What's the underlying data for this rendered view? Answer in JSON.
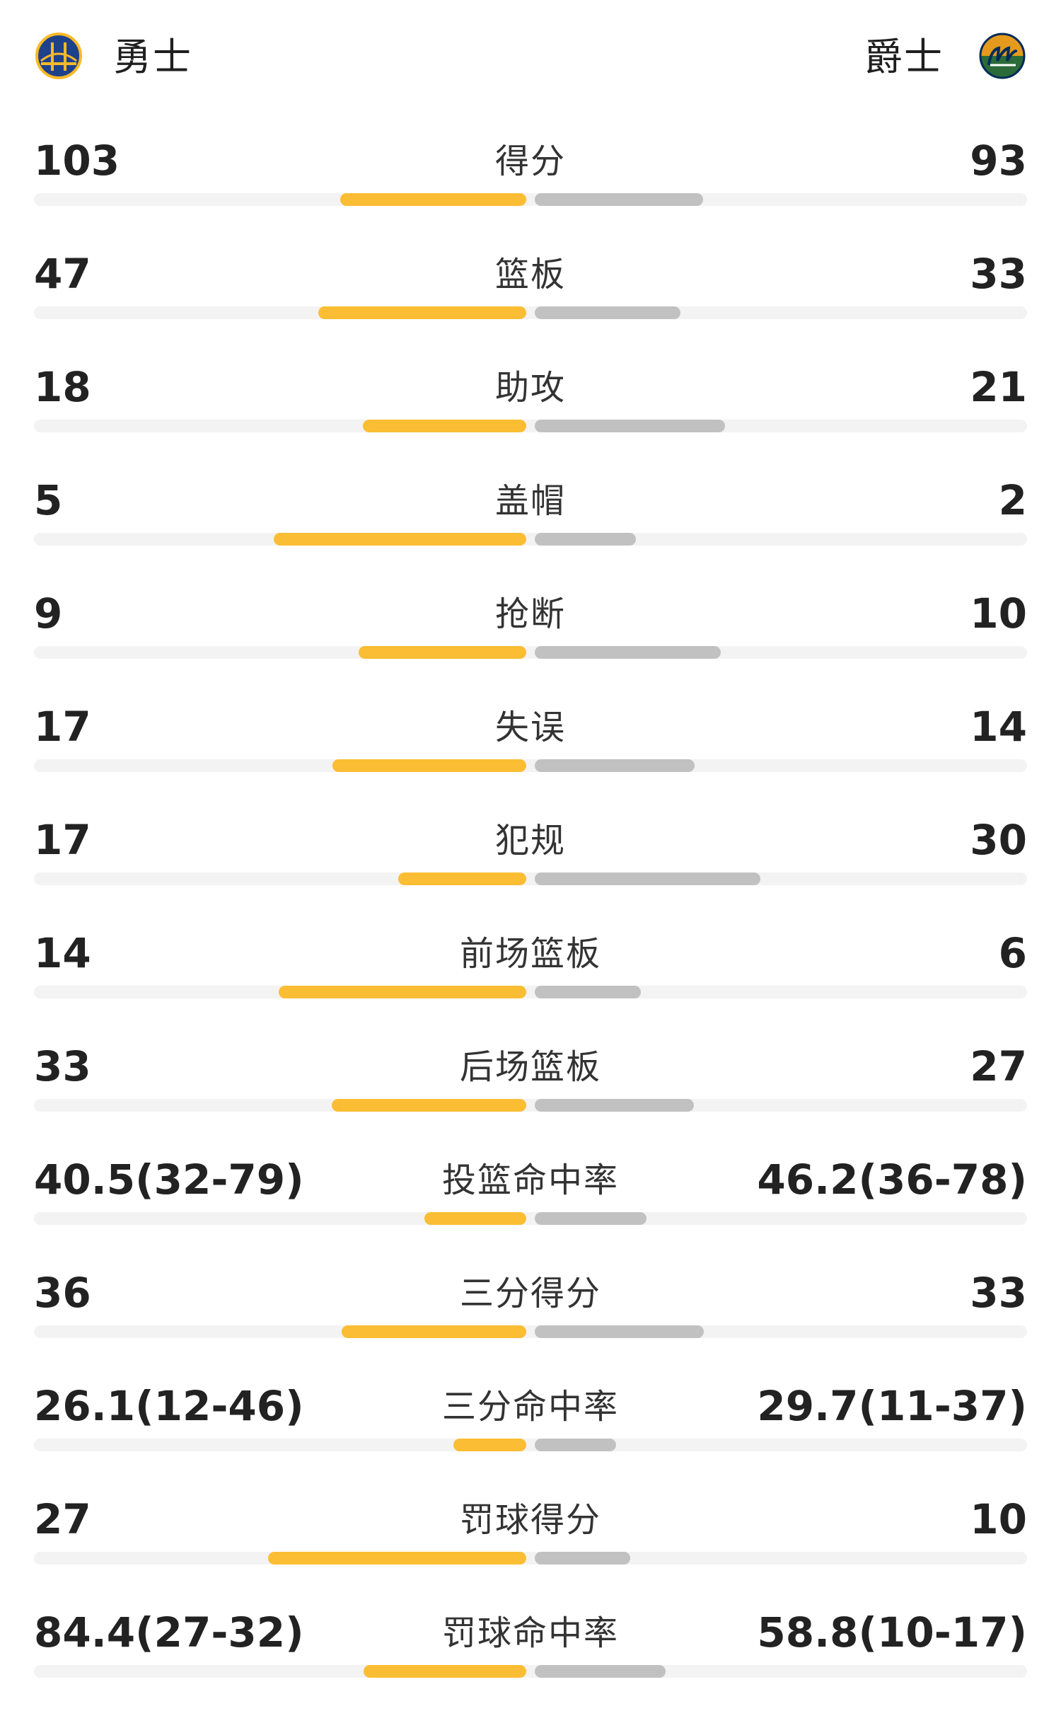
{
  "header": {
    "home_team": "勇士",
    "away_team": "爵士",
    "home_logo_icon": "warriors-bridge-logo-icon",
    "away_logo_icon": "jazz-note-logo-icon"
  },
  "colors": {
    "home_bar": "#fbbd33",
    "away_bar": "#c1c1c1",
    "track": "#f3f3f3",
    "warriors_blue": "#1d428a",
    "warriors_gold": "#fdb927",
    "jazz_navy": "#002b5c",
    "jazz_green": "#2b6b3a",
    "jazz_yellow": "#f9a01b"
  },
  "stats": [
    {
      "label": "得分",
      "home": "103",
      "away": "93",
      "home_share": 0.525,
      "away_share": 0.475
    },
    {
      "label": "篮板",
      "home": "47",
      "away": "33",
      "home_share": 0.588,
      "away_share": 0.412
    },
    {
      "label": "助攻",
      "home": "18",
      "away": "21",
      "home_share": 0.462,
      "away_share": 0.538
    },
    {
      "label": "盖帽",
      "home": "5",
      "away": "2",
      "home_share": 0.714,
      "away_share": 0.286
    },
    {
      "label": "抢断",
      "home": "9",
      "away": "10",
      "home_share": 0.474,
      "away_share": 0.526
    },
    {
      "label": "失误",
      "home": "17",
      "away": "14",
      "home_share": 0.548,
      "away_share": 0.452
    },
    {
      "label": "犯规",
      "home": "17",
      "away": "30",
      "home_share": 0.362,
      "away_share": 0.638
    },
    {
      "label": "前场篮板",
      "home": "14",
      "away": "6",
      "home_share": 0.7,
      "away_share": 0.3
    },
    {
      "label": "后场篮板",
      "home": "33",
      "away": "27",
      "home_share": 0.55,
      "away_share": 0.45
    },
    {
      "label": "投篮命中率",
      "home": "40.5(32-79)",
      "away": "46.2(36-78)",
      "home_share": 0.287,
      "away_share": 0.316
    },
    {
      "label": "三分得分",
      "home": "36",
      "away": "33",
      "home_share": 0.522,
      "away_share": 0.478
    },
    {
      "label": "三分命中率",
      "home": "26.1(12-46)",
      "away": "29.7(11-37)",
      "home_share": 0.205,
      "away_share": 0.23
    },
    {
      "label": "罚球得分",
      "home": "27",
      "away": "10",
      "home_share": 0.73,
      "away_share": 0.27
    },
    {
      "label": "罚球命中率",
      "home": "84.4(27-32)",
      "away": "58.8(10-17)",
      "home_share": 0.459,
      "away_share": 0.37
    }
  ]
}
